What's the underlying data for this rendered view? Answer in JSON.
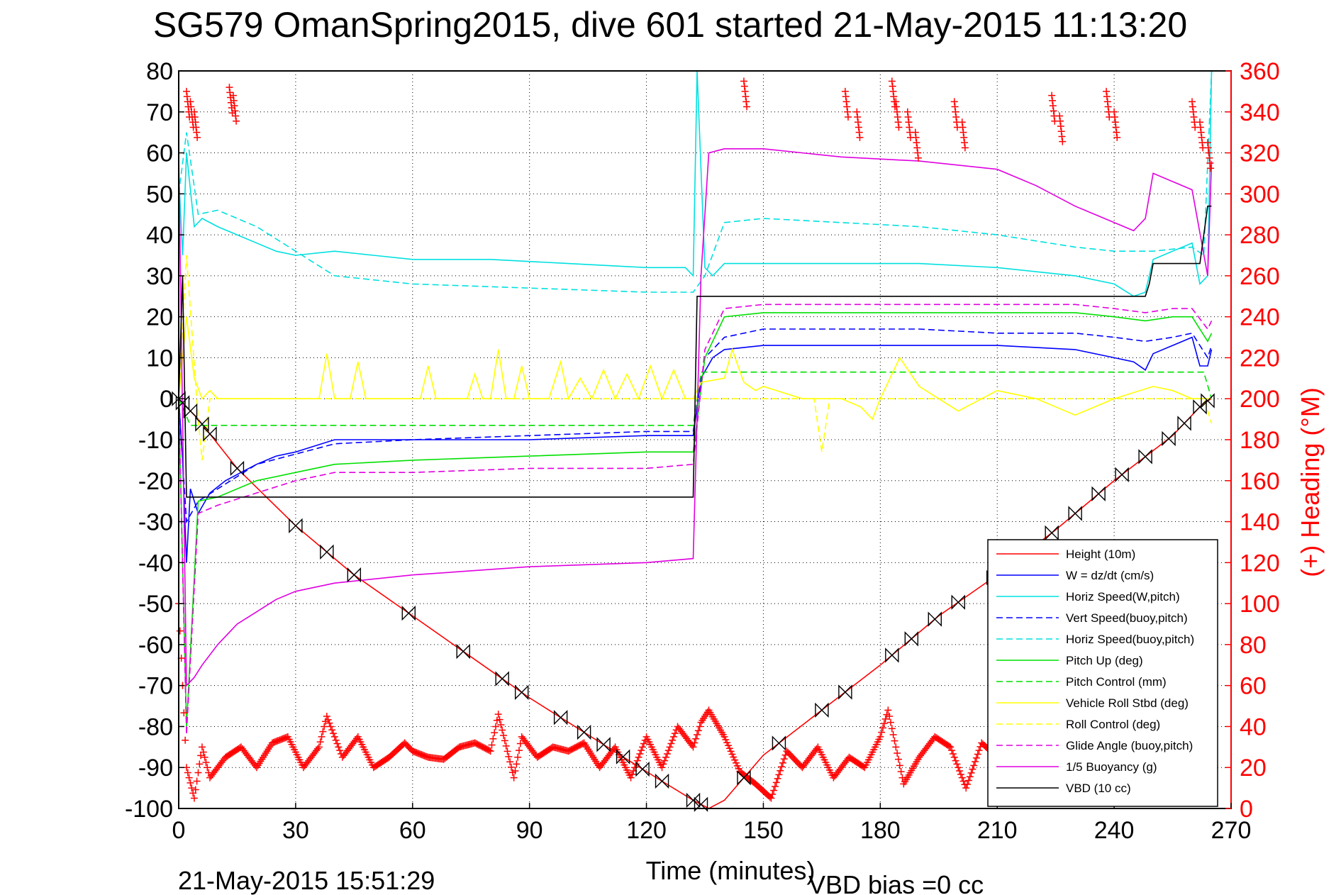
{
  "chart_data": {
    "type": "line",
    "title": "SG579 OmanSpring2015, dive 601 started 21-May-2015 11:13:20",
    "xlabel": "Time (minutes)",
    "ylabel_right": "(+) Heading (°M)",
    "footer_left": "21-May-2015 15:51:29",
    "footer_right": "VBD bias =0 cc",
    "xlim": [
      0,
      270
    ],
    "ylim": [
      -100,
      80
    ],
    "y2lim": [
      0,
      360
    ],
    "xticks": [
      "0",
      "30",
      "60",
      "90",
      "120",
      "150",
      "180",
      "210",
      "240",
      "270"
    ],
    "yticks": [
      "80",
      "70",
      "60",
      "50",
      "40",
      "30",
      "20",
      "10",
      "0",
      "-10",
      "-20",
      "-30",
      "-40",
      "-50",
      "-60",
      "-70",
      "-80",
      "-90",
      "-100"
    ],
    "y2ticks": [
      "360",
      "340",
      "320",
      "300",
      "280",
      "260",
      "240",
      "220",
      "200",
      "180",
      "160",
      "140",
      "120",
      "100",
      "80",
      "60",
      "40",
      "20",
      "0"
    ],
    "grid": true,
    "legend_position": "lower-right",
    "series": [
      {
        "name": "Height (10m)",
        "color": "#ff0000",
        "style": "solid",
        "x": [
          0,
          5,
          15,
          30,
          45,
          60,
          75,
          90,
          105,
          120,
          132,
          136,
          140,
          150,
          165,
          180,
          195,
          210,
          225,
          240,
          255,
          263,
          265
        ],
        "y": [
          0,
          -5,
          -17,
          -31,
          -43,
          -53,
          -63,
          -73,
          -82,
          -91,
          -98,
          -100,
          -98,
          -87,
          -76,
          -65,
          -53,
          -43,
          -32,
          -20,
          -9,
          -1,
          0
        ]
      },
      {
        "name": "W = dz/dt (cm/s)",
        "color": "#0000ff",
        "style": "solid",
        "x": [
          0,
          1,
          2,
          3,
          5,
          8,
          12,
          16,
          20,
          25,
          30,
          40,
          60,
          90,
          120,
          132,
          134,
          137,
          140,
          150,
          170,
          190,
          210,
          230,
          240,
          245,
          248,
          250,
          255,
          260,
          262,
          264,
          265
        ],
        "y": [
          0,
          -15,
          -40,
          -22,
          -28,
          -23,
          -20,
          -18,
          -16,
          -14,
          -13,
          -10,
          -10,
          -10,
          -9,
          -9,
          5,
          10,
          12,
          13,
          13,
          13,
          13,
          12,
          10,
          9,
          7,
          11,
          13,
          15,
          8,
          8,
          12
        ]
      },
      {
        "name": "Horiz Speed(W,pitch)",
        "color": "#00e0e0",
        "style": "solid",
        "x": [
          0,
          1,
          2,
          4,
          6,
          10,
          15,
          20,
          25,
          30,
          40,
          50,
          60,
          80,
          100,
          120,
          130,
          132,
          133,
          135,
          137,
          140,
          150,
          170,
          190,
          210,
          230,
          240,
          245,
          248,
          250,
          255,
          260,
          262,
          264,
          265
        ],
        "y": [
          55,
          35,
          60,
          42,
          44,
          42,
          40,
          38,
          36,
          35,
          36,
          35,
          34,
          34,
          33,
          32,
          32,
          30,
          80,
          32,
          30,
          33,
          33,
          33,
          33,
          32,
          30,
          28,
          25,
          26,
          34,
          36,
          38,
          28,
          30,
          80
        ]
      },
      {
        "name": "Vert Speed(buoy,pitch)",
        "color": "#0000ff",
        "style": "dashed",
        "x": [
          0,
          2,
          5,
          10,
          20,
          40,
          60,
          90,
          120,
          132,
          135,
          140,
          150,
          170,
          190,
          210,
          230,
          240,
          248,
          255,
          260,
          264,
          265
        ],
        "y": [
          0,
          -30,
          -25,
          -22,
          -16,
          -11,
          -10,
          -9,
          -8,
          -8,
          10,
          15,
          17,
          17,
          17,
          16,
          16,
          15,
          14,
          15,
          16,
          10,
          13
        ]
      },
      {
        "name": "Horiz Speed(buoy,pitch)",
        "color": "#00e0e0",
        "style": "dashed",
        "x": [
          0,
          2,
          5,
          10,
          20,
          30,
          40,
          60,
          90,
          120,
          132,
          135,
          140,
          150,
          170,
          190,
          210,
          230,
          240,
          250,
          260,
          263,
          265
        ],
        "y": [
          50,
          65,
          45,
          46,
          42,
          36,
          30,
          28,
          27,
          26,
          26,
          30,
          43,
          44,
          43,
          42,
          40,
          37,
          36,
          36,
          37,
          35,
          80
        ]
      },
      {
        "name": "Pitch Up (deg)",
        "color": "#00e000",
        "style": "solid",
        "x": [
          0,
          2,
          5,
          10,
          20,
          30,
          40,
          60,
          90,
          120,
          132,
          135,
          140,
          150,
          170,
          190,
          210,
          230,
          240,
          248,
          255,
          260,
          264,
          265
        ],
        "y": [
          0,
          -80,
          -25,
          -24,
          -20,
          -18,
          -16,
          -15,
          -14,
          -13,
          -13,
          10,
          20,
          21,
          21,
          21,
          21,
          21,
          20,
          19,
          20,
          20,
          14,
          16
        ]
      },
      {
        "name": "Pitch Control (mm)",
        "color": "#00e000",
        "style": "dashed",
        "x": [
          0,
          3,
          132,
          134,
          263,
          265
        ],
        "y": [
          0,
          -6.5,
          -6.5,
          6.5,
          6.5,
          0
        ]
      },
      {
        "name": "Vehicle Roll Stbd (deg)",
        "color": "#ffff00",
        "style": "solid",
        "x": [
          0,
          2,
          4,
          6,
          8,
          10,
          36,
          38,
          40,
          42,
          44,
          46,
          48,
          60,
          62,
          64,
          66,
          70,
          74,
          76,
          78,
          80,
          82,
          84,
          86,
          88,
          90,
          95,
          98,
          100,
          103,
          106,
          109,
          112,
          115,
          118,
          121,
          124,
          127,
          130,
          132,
          134,
          140,
          142,
          145,
          148,
          150,
          160,
          170,
          175,
          178,
          180,
          185,
          190,
          195,
          200,
          210,
          220,
          230,
          240,
          250,
          255,
          260,
          265
        ],
        "y": [
          0,
          20,
          5,
          0,
          2,
          0,
          0,
          11,
          0,
          0,
          0,
          9,
          0,
          0,
          0,
          8,
          0,
          0,
          0,
          6,
          0,
          0,
          12,
          0,
          0,
          8,
          0,
          0,
          9,
          0,
          5,
          0,
          7,
          0,
          6,
          0,
          8,
          0,
          7,
          0,
          0,
          4,
          5,
          12,
          4,
          2,
          3,
          0,
          0,
          -2,
          -5,
          0,
          10,
          3,
          0,
          -3,
          2,
          0,
          -4,
          0,
          3,
          2,
          0,
          0
        ]
      },
      {
        "name": "Roll Control (deg)",
        "color": "#ffff00",
        "style": "dashed",
        "x": [
          0,
          2,
          5,
          6,
          8,
          132,
          134,
          163,
          165,
          167,
          263,
          265
        ],
        "y": [
          0,
          35,
          -5,
          -15,
          0,
          0,
          0,
          0,
          -13,
          0,
          0,
          -6
        ]
      },
      {
        "name": "Glide Angle (buoy,pitch)",
        "color": "#e000e0",
        "style": "dashed",
        "x": [
          0,
          2,
          5,
          10,
          20,
          30,
          40,
          60,
          90,
          120,
          132,
          135,
          140,
          150,
          170,
          190,
          210,
          230,
          240,
          248,
          255,
          260,
          264,
          265
        ],
        "y": [
          0,
          -82,
          -28,
          -26,
          -23,
          -20,
          -18,
          -18,
          -17,
          -17,
          -16,
          12,
          22,
          23,
          23,
          23,
          23,
          23,
          22,
          21,
          22,
          22,
          17,
          19
        ]
      },
      {
        "name": "1/5 Buoyancy (g)",
        "color": "#e000e0",
        "style": "solid",
        "x": [
          0,
          2,
          4,
          6,
          10,
          15,
          20,
          25,
          30,
          40,
          60,
          90,
          120,
          132,
          134,
          136,
          140,
          150,
          170,
          190,
          210,
          220,
          230,
          240,
          245,
          248,
          250,
          255,
          260,
          264,
          265
        ],
        "y": [
          60,
          -70,
          -68,
          -65,
          -60,
          -55,
          -52,
          -49,
          -47,
          -45,
          -43,
          -41,
          -40,
          -39,
          30,
          60,
          61,
          61,
          59,
          58,
          56,
          52,
          47,
          43,
          41,
          44,
          55,
          53,
          51,
          30,
          58
        ]
      },
      {
        "name": "VBD (10 cc)",
        "color": "#000000",
        "style": "solid",
        "x": [
          0,
          1,
          2,
          3,
          4,
          132,
          133,
          136,
          248,
          249,
          250,
          262,
          263,
          264,
          265
        ],
        "y": [
          0,
          30,
          -24,
          -24,
          -24,
          -24,
          25,
          25,
          25,
          28,
          33,
          33,
          40,
          47,
          47
        ]
      }
    ],
    "heading_series": {
      "name": "(+) Heading (°M)",
      "color": "#ff0000",
      "x": [
        0,
        2,
        4,
        6,
        8,
        12,
        16,
        20,
        24,
        28,
        32,
        36,
        38,
        42,
        46,
        50,
        54,
        58,
        60,
        64,
        68,
        72,
        76,
        80,
        82,
        86,
        88,
        92,
        96,
        100,
        104,
        108,
        112,
        116,
        120,
        124,
        128,
        132,
        134,
        136,
        140,
        144,
        148,
        152,
        156,
        160,
        164,
        168,
        172,
        176,
        180,
        182,
        186,
        190,
        194,
        198,
        202,
        206,
        210,
        214,
        218,
        222,
        226,
        230,
        234,
        238,
        242,
        246,
        250,
        254,
        258,
        262,
        265
      ],
      "y": [
        100,
        20,
        5,
        30,
        15,
        25,
        30,
        20,
        32,
        35,
        20,
        30,
        45,
        25,
        35,
        20,
        25,
        32,
        28,
        25,
        24,
        30,
        32,
        28,
        46,
        15,
        35,
        25,
        30,
        28,
        32,
        20,
        30,
        15,
        35,
        20,
        40,
        30,
        42,
        48,
        35,
        18,
        12,
        5,
        28,
        20,
        30,
        15,
        25,
        20,
        35,
        48,
        12,
        25,
        35,
        30,
        10,
        32,
        25,
        15,
        20,
        28,
        15,
        22,
        18,
        25,
        28,
        12,
        30,
        22,
        15,
        10,
        20
      ]
    },
    "markers": {
      "symbol": "bowtie",
      "color": "#000000",
      "x": [
        0,
        1,
        3,
        6,
        8,
        15,
        30,
        38,
        45,
        59,
        73,
        83,
        88,
        98,
        104,
        109,
        114,
        119,
        124,
        132,
        134,
        145,
        154,
        165,
        171,
        183,
        188,
        194,
        200,
        209,
        224,
        230,
        236,
        242,
        248,
        254,
        258,
        262,
        264
      ]
    },
    "heading_markers_top": {
      "x": [
        2,
        3,
        4,
        13,
        14,
        145,
        171,
        174,
        183,
        184,
        187,
        189,
        199,
        201,
        224,
        226,
        238,
        240,
        260,
        262,
        264
      ],
      "y": [
        350,
        345,
        340,
        352,
        348,
        355,
        350,
        340,
        355,
        345,
        340,
        330,
        345,
        335,
        348,
        338,
        350,
        340,
        345,
        335,
        325
      ]
    }
  }
}
